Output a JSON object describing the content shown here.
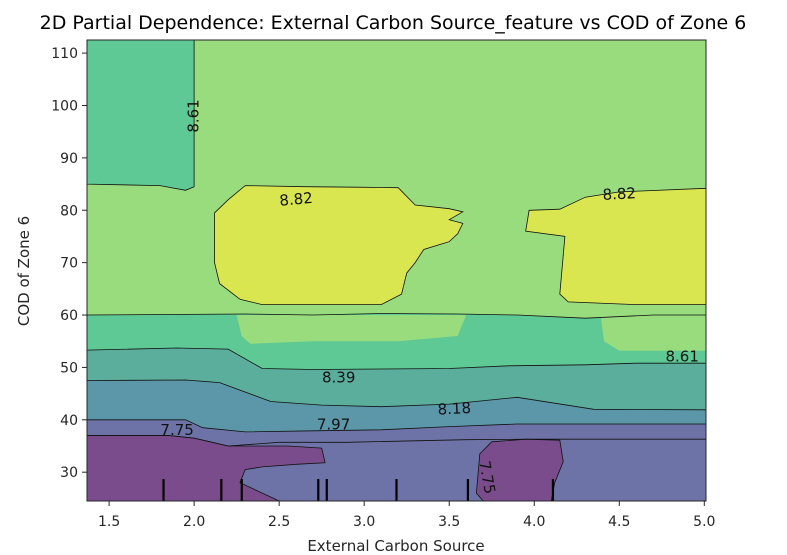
{
  "chart_data": {
    "type": "heatmap",
    "subtype": "filled-contour",
    "title": "2D  Partial Dependence: External Carbon Source_feature vs COD of Zone 6",
    "xlabel": "External Carbon Source",
    "ylabel": "COD of Zone 6",
    "xlim": [
      1.37,
      5.01
    ],
    "ylim": [
      24.5,
      112.5
    ],
    "x_ticks": [
      "1.5",
      "2.0",
      "2.5",
      "3.0",
      "3.5",
      "4.0",
      "4.5",
      "5.0"
    ],
    "y_ticks": [
      "30",
      "40",
      "50",
      "60",
      "70",
      "80",
      "90",
      "100",
      "110"
    ],
    "levels": [
      7.75,
      7.97,
      8.18,
      8.39,
      8.61,
      8.82
    ],
    "contour_labels": [
      "8.61",
      "8.82",
      "8.82",
      "8.61",
      "8.39",
      "8.18",
      "7.97",
      "7.75",
      "7.75"
    ],
    "level_colors": [
      "#7b4c8c",
      "#6d73a6",
      "#5b97a8",
      "#5bad9c",
      "#5ec994",
      "#98dc7d",
      "#d9e650"
    ],
    "rug_x": [
      1.82,
      2.16,
      2.28,
      2.73,
      2.78,
      3.19,
      3.61,
      4.11
    ],
    "grid": false,
    "legend": "none"
  }
}
